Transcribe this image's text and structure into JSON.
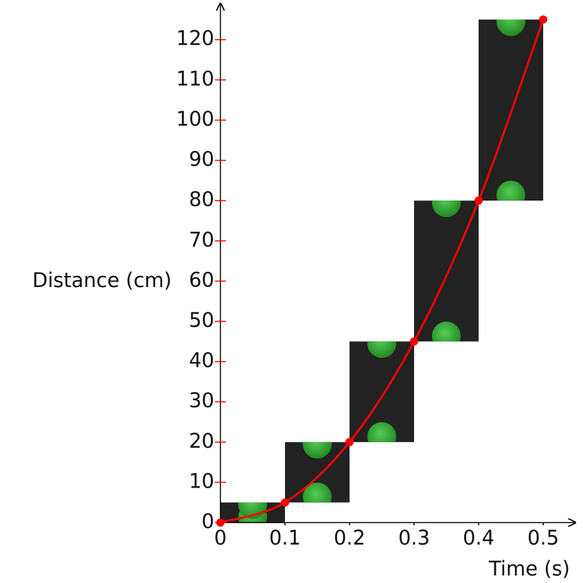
{
  "chart_data": {
    "type": "line",
    "x_label": "Time (s)",
    "y_label": "Distance (cm)",
    "x": [
      0,
      0.1,
      0.2,
      0.3,
      0.4,
      0.5
    ],
    "series": [
      {
        "color": "#ff0000",
        "values": [
          0,
          5,
          20,
          45,
          80,
          125
        ]
      }
    ],
    "xlim": [
      0,
      0.55
    ],
    "ylim": [
      0,
      129
    ],
    "xticks": [
      0,
      0.1,
      0.2,
      0.3,
      0.4,
      0.5
    ],
    "yticks": [
      0,
      10,
      20,
      30,
      40,
      50,
      60,
      70,
      80,
      90,
      100,
      110,
      120
    ],
    "tick_color": "#ff0000",
    "frame_color": "#222222",
    "ball_color": "#33aa33"
  }
}
